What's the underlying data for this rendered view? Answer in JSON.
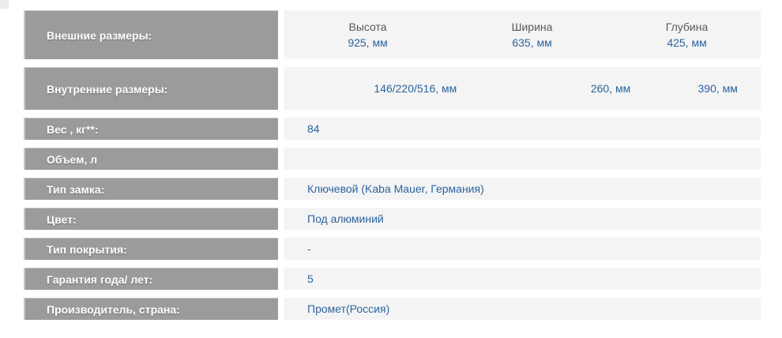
{
  "colors": {
    "label_bar": "#9b9b9b",
    "label_text": "#ffffff",
    "value_cell_bg": "#f4f4f5",
    "value_text": "#2d639c",
    "dimension_header_text": "#595959"
  },
  "table": {
    "rows": [
      {
        "label": "Внешние размеры:",
        "columns": [
          {
            "header": "Высота",
            "value": "925, мм"
          },
          {
            "header": "Ширина",
            "value": "635, мм"
          },
          {
            "header": "Глубина",
            "value": "425, мм"
          }
        ]
      },
      {
        "label": "Внутренние размеры:",
        "values": [
          "146/220/516, мм",
          "260, мм",
          "390, мм"
        ]
      },
      {
        "label": "Вес , кг**:",
        "value": "84"
      },
      {
        "label": "Объем, л",
        "value": ""
      },
      {
        "label": "Тип замка:",
        "value": "Ключевой (Kaba Mauer, Германия)"
      },
      {
        "label": "Цвет:",
        "value": "Под алюминий"
      },
      {
        "label": "Тип покрытия:",
        "value": "-"
      },
      {
        "label": "Гарантия года/ лет:",
        "value": "5"
      },
      {
        "label": "Производитель, страна:",
        "value": "Промет(Россия)"
      }
    ]
  }
}
